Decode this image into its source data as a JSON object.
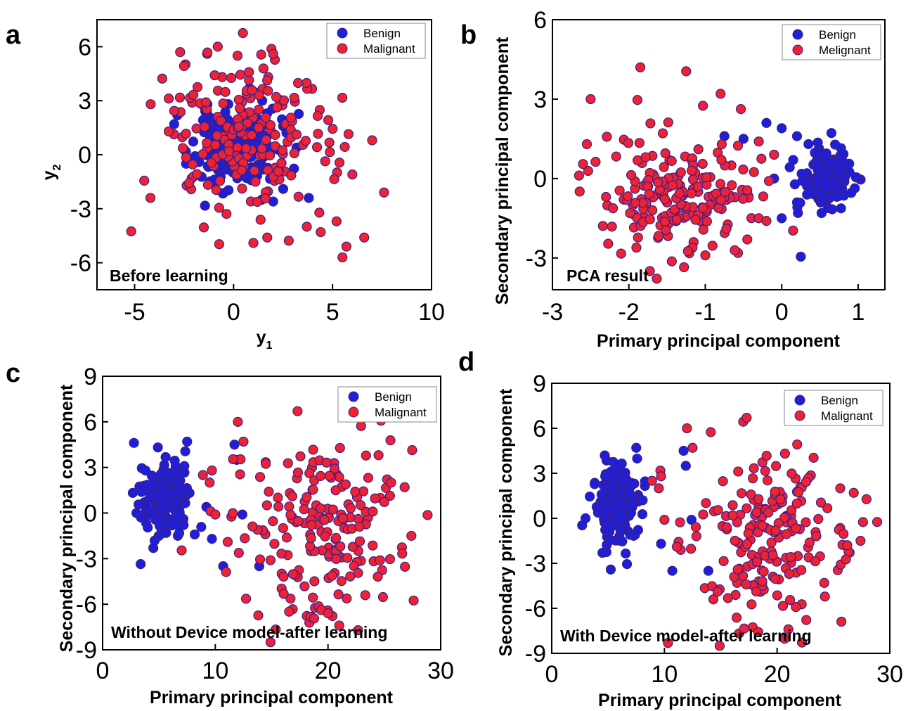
{
  "colors": {
    "benign": "#1f1fd8",
    "malignant": "#ee2231",
    "marker_edge": "#3a1f8c"
  },
  "chart_data": [
    {
      "type": "scatter",
      "panel_letter": "a",
      "annotation": "Before learning",
      "xlabel": "y",
      "xlabel_sub": "1",
      "ylabel": "y",
      "ylabel_sub": "2",
      "xlim": [
        -6.9,
        10
      ],
      "ylim": [
        -7.5,
        7.5
      ],
      "xticks": [
        "-5",
        "0",
        "5",
        "10"
      ],
      "yticks": [
        "-6",
        "-3",
        "0",
        "3",
        "6"
      ],
      "legend": {
        "position": "top-right",
        "entries": [
          "Benign",
          "Malignant"
        ]
      },
      "grid": false,
      "series": [
        {
          "name": "Benign",
          "cluster": {
            "cx": 0.1,
            "cy": 0.3,
            "sx": 1.1,
            "sy": 1.1,
            "n": 170,
            "seed": 11
          },
          "points": [
            [
              0.8,
              3.7
            ],
            [
              1.7,
              2.3
            ],
            [
              -3.0,
              1.7
            ],
            [
              2.0,
              -2.6
            ],
            [
              3.8,
              -2.4
            ],
            [
              -2.4,
              -0.5
            ]
          ]
        },
        {
          "name": "Malignant",
          "cluster": {
            "cx": 0.5,
            "cy": 0.9,
            "sx": 2.2,
            "sy": 2.3,
            "n": 190,
            "seed": 23
          },
          "points": [
            [
              -2.7,
              5.7
            ],
            [
              -0.8,
              6.0
            ],
            [
              0.2,
              5.5
            ],
            [
              2.0,
              5.6
            ],
            [
              -4.2,
              -2.4
            ],
            [
              7.6,
              -2.1
            ],
            [
              5.5,
              -5.7
            ],
            [
              6.6,
              -4.6
            ],
            [
              5.7,
              -5.1
            ],
            [
              7.0,
              0.8
            ],
            [
              6.0,
              -1.1
            ],
            [
              1.0,
              -4.9
            ],
            [
              1.7,
              -4.6
            ],
            [
              4.4,
              -4.3
            ],
            [
              3.7,
              -4.0
            ],
            [
              5.2,
              -3.7
            ]
          ]
        }
      ]
    },
    {
      "type": "scatter",
      "panel_letter": "b",
      "annotation": "PCA result",
      "xlabel": "Primary principal component",
      "ylabel": "Secondary principal component",
      "xlim": [
        -3.0,
        1.35
      ],
      "ylim": [
        -4.2,
        6.0
      ],
      "xticks": [
        "-3",
        "-2",
        "-1",
        "0",
        "1"
      ],
      "yticks": [
        "-3",
        "0",
        "3",
        "6"
      ],
      "legend": {
        "position": "top-right",
        "entries": [
          "Benign",
          "Melignant"
        ]
      },
      "grid": false,
      "series": [
        {
          "name": "Benign",
          "cluster": {
            "cx": 0.6,
            "cy": 0.0,
            "sx": 0.15,
            "sy": 0.55,
            "n": 170,
            "seed": 31
          },
          "points": [
            [
              -0.2,
              2.1
            ],
            [
              0.0,
              1.9
            ],
            [
              0.2,
              1.6
            ],
            [
              0.35,
              1.3
            ],
            [
              -0.1,
              0.0
            ],
            [
              0.0,
              -1.5
            ],
            [
              0.25,
              -2.95
            ],
            [
              0.2,
              -0.9
            ],
            [
              -0.5,
              1.5
            ],
            [
              -0.75,
              1.6
            ],
            [
              0.15,
              0.7
            ]
          ]
        },
        {
          "name": "Malignant",
          "cluster": {
            "cx": -1.3,
            "cy": -0.6,
            "sx": 0.5,
            "sy": 1.15,
            "n": 190,
            "seed": 37
          },
          "points": [
            [
              -1.85,
              4.2
            ],
            [
              -1.25,
              4.05
            ],
            [
              -2.5,
              3.0
            ],
            [
              -0.8,
              3.2
            ],
            [
              -2.6,
              0.55
            ],
            [
              -2.55,
              1.3
            ],
            [
              -0.45,
              -2.3
            ],
            [
              -0.3,
              -1.5
            ],
            [
              -0.2,
              -1.6
            ],
            [
              -0.1,
              0.9
            ],
            [
              -0.3,
              1.4
            ],
            [
              -1.0,
              -2.9
            ]
          ]
        }
      ]
    },
    {
      "type": "scatter",
      "panel_letter": "c",
      "annotation": "Without Device model-after learning",
      "xlabel": "Primary principal component",
      "ylabel": "Secondary principal component",
      "xlim": [
        0,
        30
      ],
      "ylim": [
        -9.0,
        9.0
      ],
      "xticks": [
        "0",
        "10",
        "20",
        "30"
      ],
      "yticks": [
        "-9",
        "-6",
        "-3",
        "0",
        "3",
        "6",
        "9"
      ],
      "legend": {
        "position": "top-right",
        "entries": [
          "Benign",
          "Malignant"
        ]
      },
      "grid": false,
      "series": [
        {
          "name": "Benign",
          "cluster": {
            "cx": 5.6,
            "cy": 1.0,
            "sx": 1.1,
            "sy": 1.3,
            "n": 170,
            "seed": 41
          },
          "points": [
            [
              7.5,
              4.7
            ],
            [
              11.7,
              4.5
            ],
            [
              11.9,
              3.5
            ],
            [
              9.7,
              -1.7
            ],
            [
              10.7,
              -3.5
            ],
            [
              12.4,
              -0.1
            ],
            [
              13.9,
              -3.5
            ],
            [
              3.0,
              0.0
            ],
            [
              4.5,
              -2.3
            ]
          ]
        },
        {
          "name": "Malignant",
          "cluster": {
            "cx": 19.3,
            "cy": -1.2,
            "sx": 3.6,
            "sy": 3.0,
            "n": 190,
            "seed": 53
          },
          "points": [
            [
              14.9,
              -8.5
            ],
            [
              21.0,
              -7.4
            ],
            [
              17.3,
              6.7
            ],
            [
              12.0,
              6.0
            ],
            [
              26.8,
              1.7
            ],
            [
              25.6,
              2.0
            ],
            [
              27.4,
              -1.5
            ],
            [
              11.1,
              -1.9
            ],
            [
              10.0,
              -0.1
            ],
            [
              9.5,
              2.0
            ],
            [
              8.9,
              2.5
            ],
            [
              9.7,
              2.8
            ],
            [
              12.5,
              4.7
            ]
          ]
        }
      ]
    },
    {
      "type": "scatter",
      "panel_letter": "d",
      "annotation": "With Device model-after learning",
      "xlabel": "Primary principal component",
      "ylabel": "Secondary principal component",
      "xlim": [
        0,
        30
      ],
      "ylim": [
        -9.0,
        9.0
      ],
      "xticks": [
        "0",
        "10",
        "20",
        "30"
      ],
      "yticks": [
        "-9",
        "-6",
        "-3",
        "0",
        "3",
        "6",
        "9"
      ],
      "legend": {
        "position": "top-right",
        "entries": [
          "Benign",
          "Malignant"
        ]
      },
      "grid": false,
      "series": [
        {
          "name": "Benign",
          "cluster": {
            "cx": 5.6,
            "cy": 1.0,
            "sx": 1.1,
            "sy": 1.3,
            "n": 170,
            "seed": 61
          },
          "points": [
            [
              7.5,
              4.7
            ],
            [
              11.7,
              4.5
            ],
            [
              11.9,
              3.5
            ],
            [
              9.7,
              -1.7
            ],
            [
              10.7,
              -3.5
            ],
            [
              12.4,
              -0.1
            ],
            [
              13.9,
              -3.5
            ],
            [
              3.0,
              0.0
            ],
            [
              4.5,
              -2.3
            ]
          ]
        },
        {
          "name": "Malignant",
          "cluster": {
            "cx": 19.3,
            "cy": -1.2,
            "sx": 3.6,
            "sy": 3.0,
            "n": 190,
            "seed": 67
          },
          "points": [
            [
              14.9,
              -8.5
            ],
            [
              21.0,
              -7.4
            ],
            [
              17.3,
              6.7
            ],
            [
              12.0,
              6.0
            ],
            [
              26.8,
              1.7
            ],
            [
              25.6,
              2.0
            ],
            [
              27.4,
              -1.5
            ],
            [
              11.1,
              -1.9
            ],
            [
              10.0,
              -0.1
            ],
            [
              9.5,
              2.0
            ],
            [
              8.9,
              2.5
            ],
            [
              9.7,
              2.8
            ],
            [
              12.5,
              4.7
            ]
          ]
        }
      ]
    }
  ]
}
